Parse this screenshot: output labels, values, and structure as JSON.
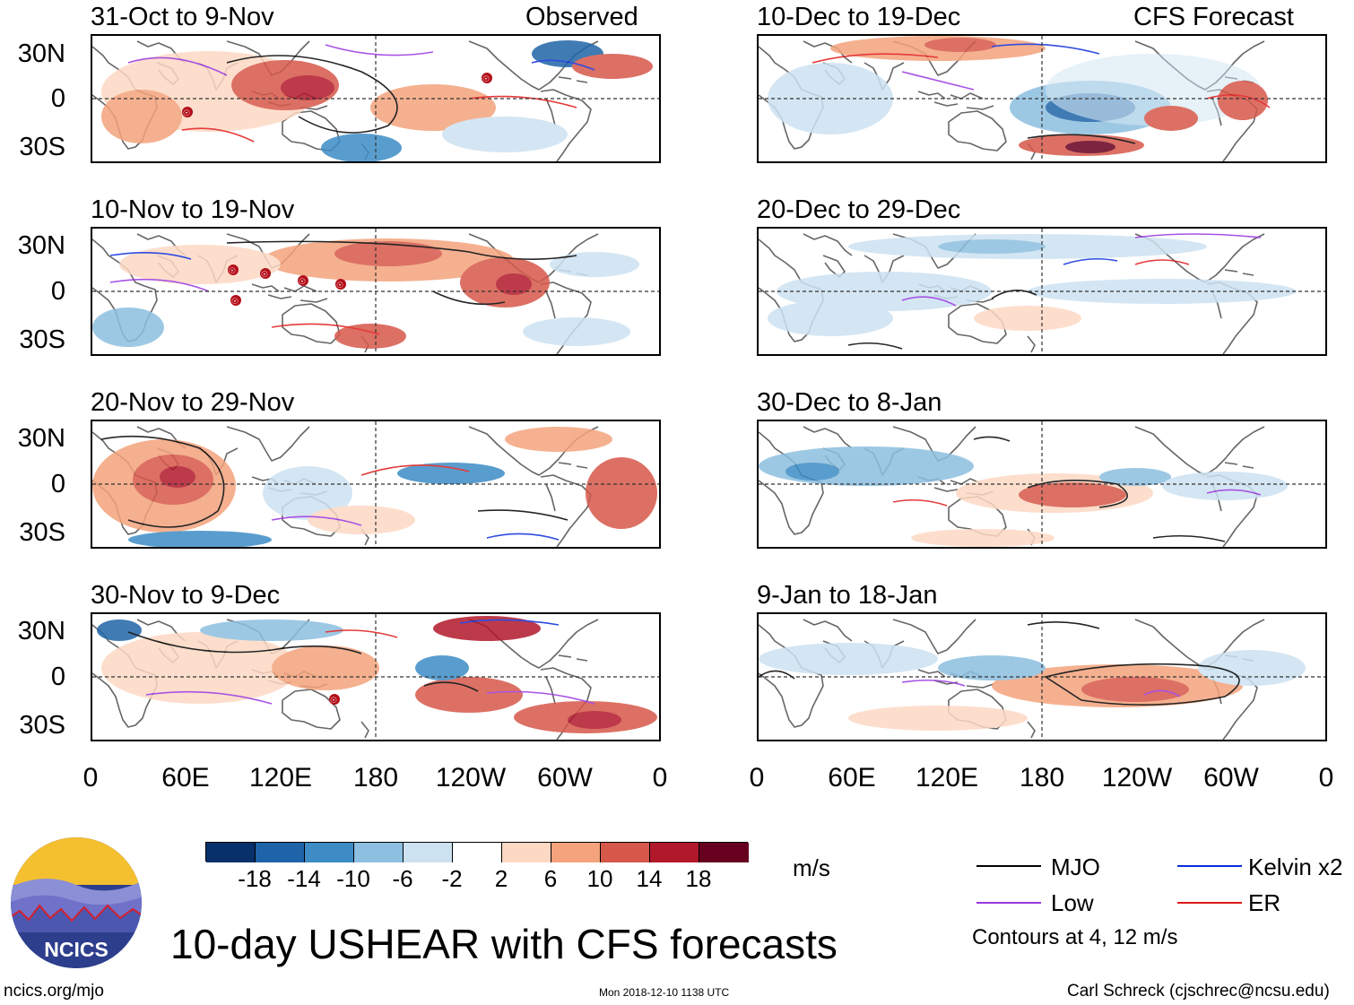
{
  "header": {
    "observed_label": "Observed",
    "forecast_label": "CFS Forecast"
  },
  "panels": [
    {
      "title": "31-Oct to 9-Nov",
      "storms": [
        "☉",
        "☉"
      ]
    },
    {
      "title": "10-Nov to 19-Nov",
      "storms": [
        "☉",
        "☉",
        "☉",
        "☉",
        "☉"
      ]
    },
    {
      "title": "20-Nov to 29-Nov",
      "storms": []
    },
    {
      "title": "30-Nov to 9-Dec",
      "storms": [
        "☉"
      ]
    },
    {
      "title": "10-Dec to 19-Dec",
      "storms": []
    },
    {
      "title": "20-Dec to 29-Dec",
      "storms": []
    },
    {
      "title": "30-Dec to 8-Jan",
      "storms": []
    },
    {
      "title": "9-Jan to 18-Jan",
      "storms": []
    }
  ],
  "axes": {
    "lat_labels": [
      "30N",
      "0",
      "30S"
    ],
    "lon_labels": [
      "0",
      "60E",
      "120E",
      "180",
      "120W",
      "60W",
      "0"
    ]
  },
  "colorbar": {
    "colors": [
      "#08306b",
      "#1f64a8",
      "#3d8cc6",
      "#8dbfe0",
      "#cde2f1",
      "#ffffff",
      "#fdd9c4",
      "#f4a37c",
      "#d6584a",
      "#b2182b",
      "#67001f"
    ],
    "labels": [
      "-18",
      "-14",
      "-10",
      "-6",
      "-2",
      "2",
      "6",
      "10",
      "14",
      "18"
    ],
    "units": "m/s"
  },
  "legend": {
    "items": [
      {
        "label": "MJO",
        "color": "#000000"
      },
      {
        "label": "Kelvin x2",
        "color": "#0b2ddb"
      },
      {
        "label": "Low",
        "color": "#9a36e0"
      },
      {
        "label": "ER",
        "color": "#e01818"
      }
    ],
    "note": "Contours at 4, 12 m/s"
  },
  "footer": {
    "title": "10-day USHEAR with CFS forecasts",
    "logo_text": "NCICS",
    "website": "ncics.org/mjo",
    "timestamp": "Mon 2018-12-10 1138 UTC",
    "credit": "Carl Schreck (cjschrec@ncsu.edu)"
  }
}
